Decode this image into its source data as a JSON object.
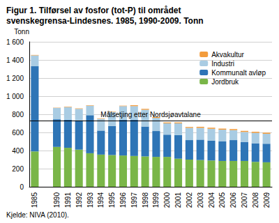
{
  "chart_data": {
    "type": "bar",
    "title": "Figur 1. Tilførsel av fosfor (tot-P) til området svenskegrensa-Lindesnes. 1985, 1990-2009. Tonn",
    "ylabel": "Tonn",
    "caption": "Kjelde: NIVA (2010).",
    "stacked": true,
    "grid": true,
    "legend": "top-right",
    "categories": [
      "1985",
      null,
      "1990",
      "1991",
      "1992",
      "1993",
      "1994",
      "1995",
      "1996",
      "1997",
      "1998",
      "1999",
      "2000",
      "2001",
      "2002",
      "2003",
      "2004",
      "2005",
      "2006",
      "2007",
      "2008",
      "2009"
    ],
    "series": [
      {
        "name": "Jordbruk",
        "color": "#7ab648",
        "values": [
          390,
          null,
          440,
          430,
          410,
          370,
          355,
          350,
          345,
          340,
          335,
          330,
          330,
          310,
          300,
          295,
          290,
          285,
          285,
          285,
          275,
          270
        ]
      },
      {
        "name": "Kommunalt avløp",
        "color": "#2e75b6",
        "values": [
          940,
          null,
          305,
          310,
          320,
          420,
          265,
          320,
          395,
          400,
          330,
          285,
          245,
          260,
          215,
          225,
          220,
          215,
          230,
          210,
          205,
          205
        ]
      },
      {
        "name": "Industri",
        "color": "#a9cce3",
        "values": [
          120,
          null,
          125,
          140,
          130,
          105,
          130,
          155,
          150,
          150,
          185,
          145,
          125,
          130,
          135,
          130,
          130,
          130,
          110,
          110,
          115,
          110
        ]
      },
      {
        "name": "Akvakultur",
        "color": "#f39c3c",
        "values": [
          5,
          null,
          3,
          5,
          5,
          5,
          5,
          5,
          5,
          10,
          10,
          10,
          10,
          10,
          10,
          12,
          12,
          12,
          12,
          12,
          12,
          12
        ]
      }
    ],
    "annotations": [
      {
        "text": "Målsetjing etter Nordsjøavtalane",
        "y": 730
      }
    ],
    "ylim": [
      0,
      1600
    ],
    "yticks": [
      0,
      200,
      400,
      600,
      800,
      {
        "value": 1000,
        "label": "1 000"
      },
      {
        "value": 1200,
        "label": "1 200"
      },
      {
        "value": 1400,
        "label": "1 400"
      },
      {
        "value": 1600,
        "label": "1 600"
      }
    ]
  }
}
